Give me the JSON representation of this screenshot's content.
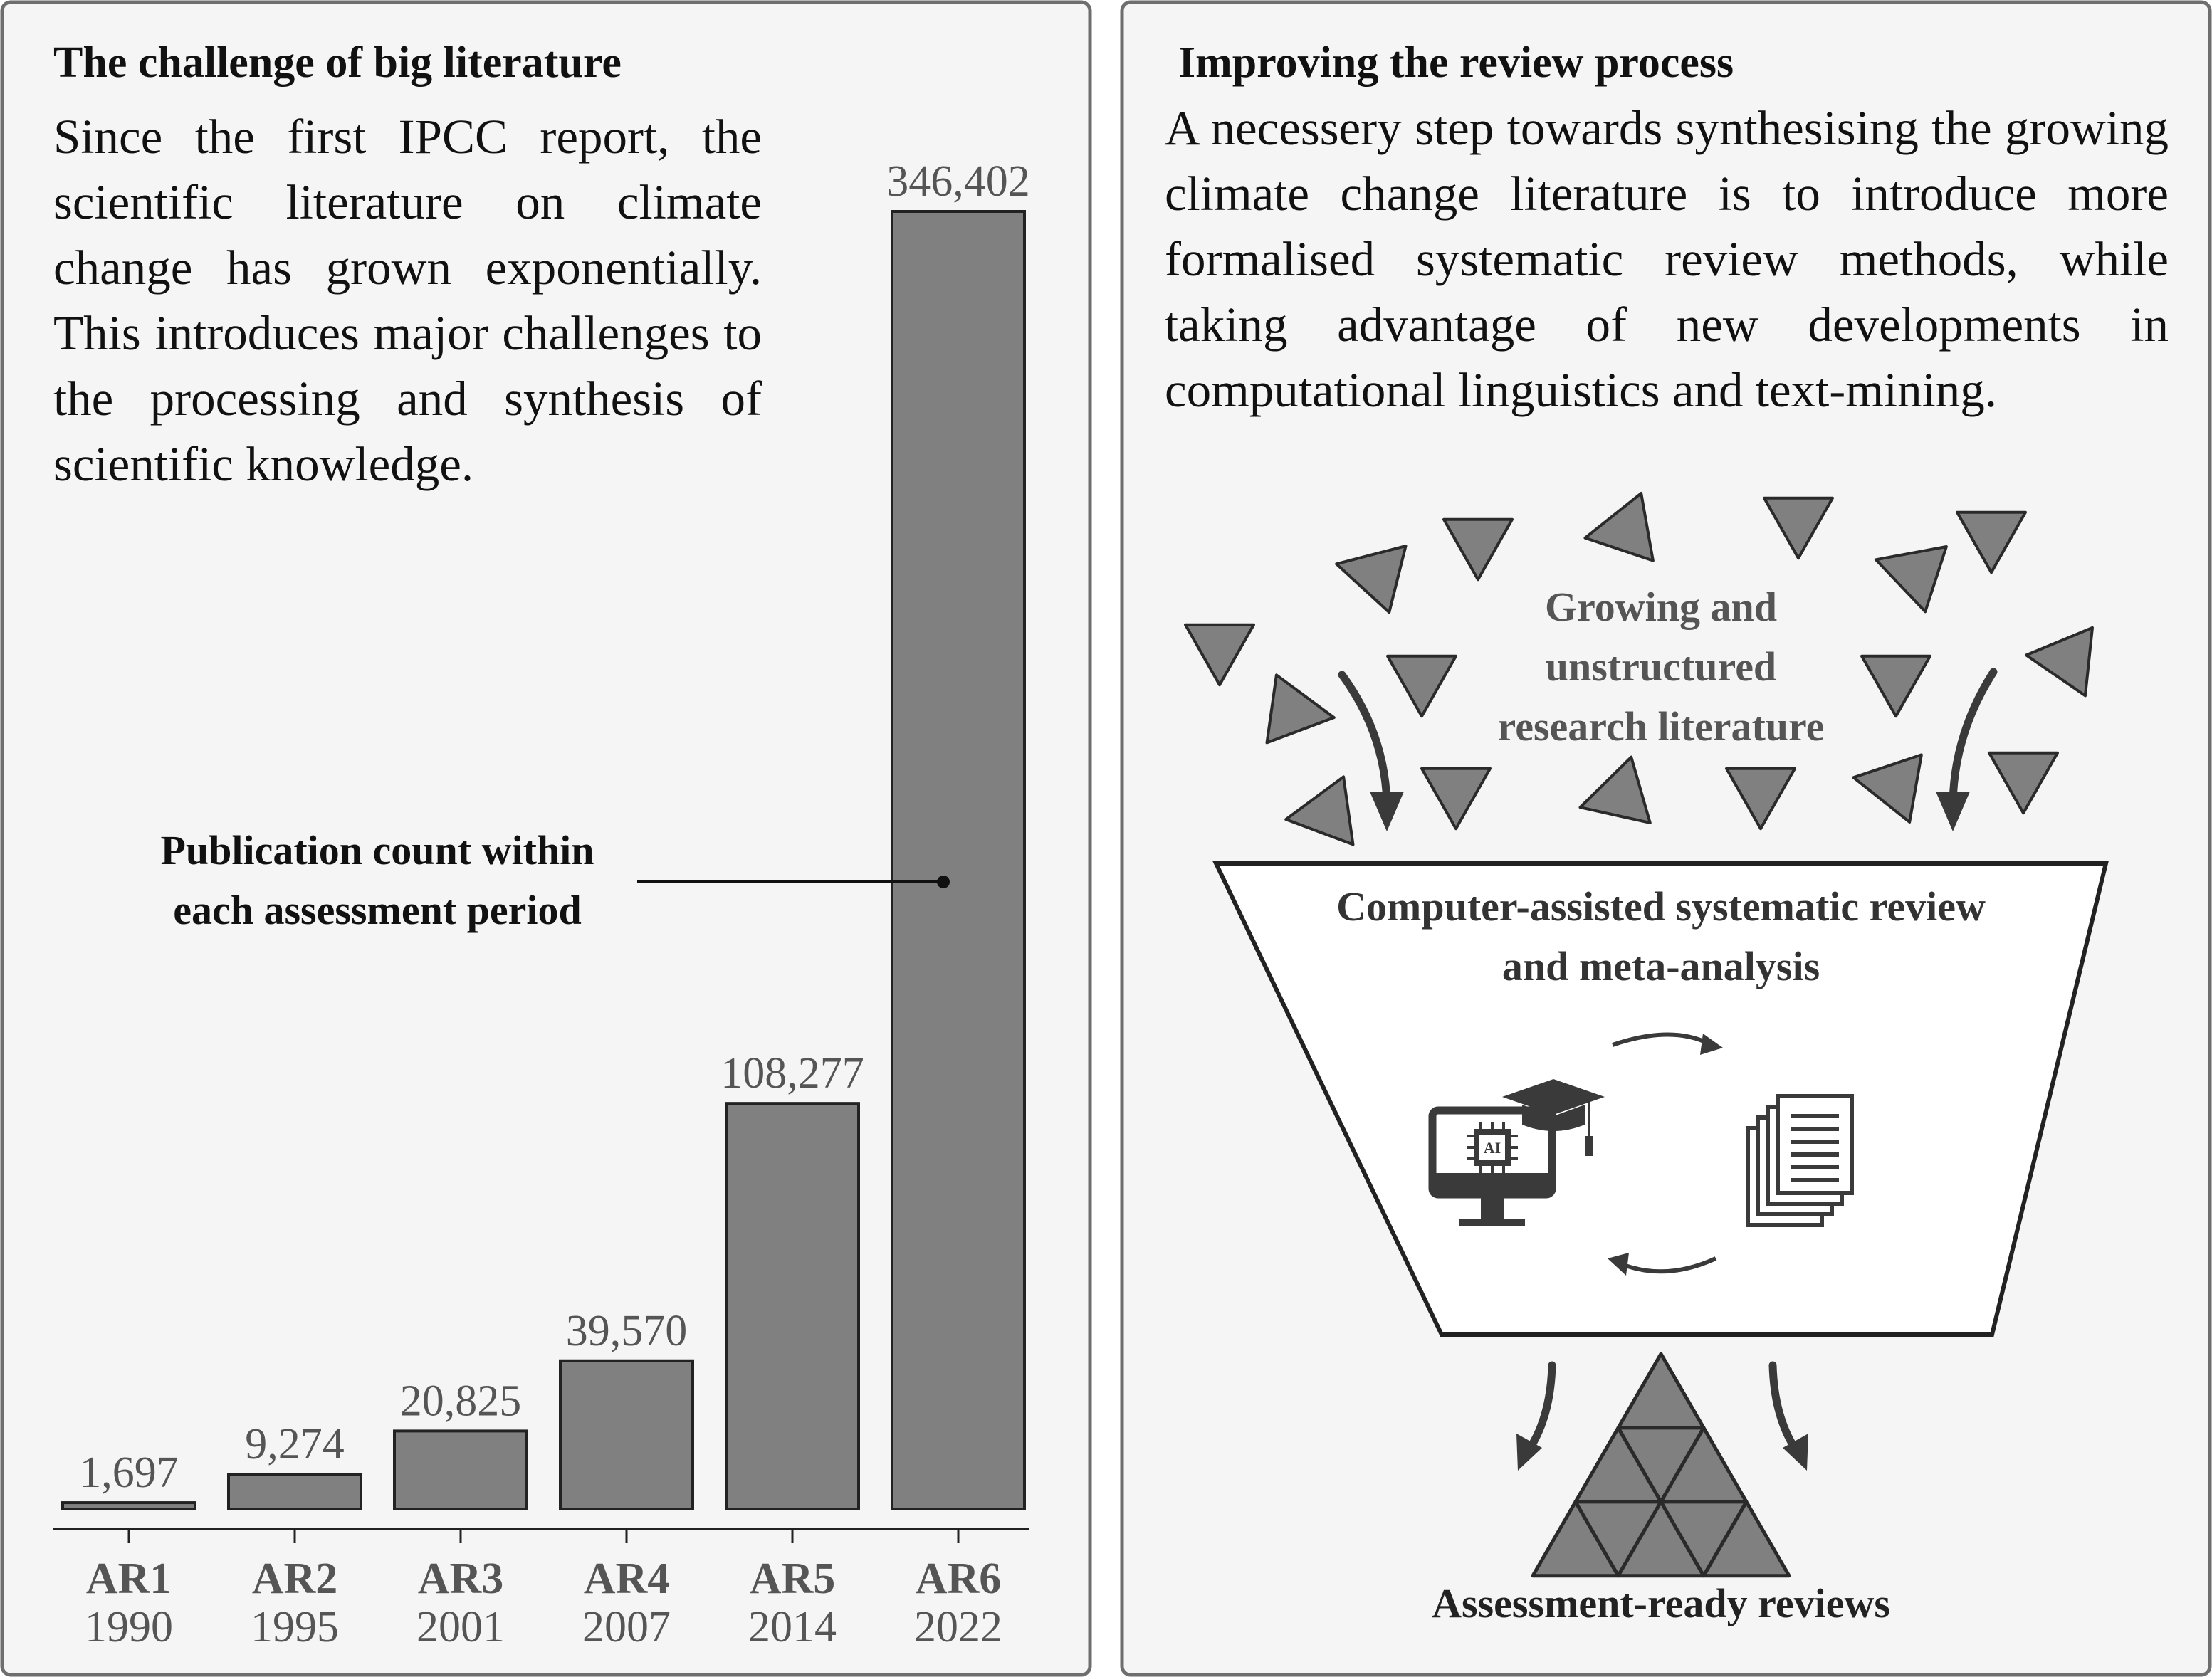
{
  "left_panel": {
    "heading": "The challenge of big literature",
    "body": "Since the first IPCC report, the scientific literature on climate change has grown exponentially. This introduces major challenges to the processing and synthesis of scientific knowledge.",
    "annotation_line1": "Publication count within",
    "annotation_line2": "each assessment period"
  },
  "right_panel": {
    "heading": "Improving the review process",
    "body": "A necessery step towards synthesising the growing climate change literature is to introduce more formalised systematic review methods, while taking advantage of new developments in computational linguistics and text-mining.",
    "cloud_line1": "Growing and",
    "cloud_line2": "unstructured",
    "cloud_line3": "research literature",
    "funnel_line1": "Computer-assisted systematic review",
    "funnel_line2": "and meta-analysis",
    "ai_chip_label": "AI",
    "output_label": "Assessment-ready reviews",
    "icons": [
      "ai-computer-icon",
      "graduation-cap-icon",
      "documents-stack-icon",
      "cycle-arrow-icon",
      "document-triangle-icon"
    ]
  },
  "colors": {
    "bar_fill": "#808080",
    "bar_stroke": "#222222",
    "panel_bg": "#f5f5f5",
    "panel_border": "#6e6e6e",
    "triangle_fill": "#808080",
    "arrow": "#3a3a3a",
    "value_text": "#555555"
  },
  "chart_data": {
    "type": "bar",
    "categories": [
      "AR1",
      "AR2",
      "AR3",
      "AR4",
      "AR5",
      "AR6"
    ],
    "years": [
      "1990",
      "1995",
      "2001",
      "2007",
      "2014",
      "2022"
    ],
    "values": [
      1697,
      9274,
      20825,
      39570,
      108277,
      346402
    ],
    "value_labels": [
      "1,697",
      "9,274",
      "20,825",
      "39,570",
      "108,277",
      "346,402"
    ],
    "ylim": [
      0,
      346402
    ],
    "grid": false,
    "legend": "none"
  }
}
